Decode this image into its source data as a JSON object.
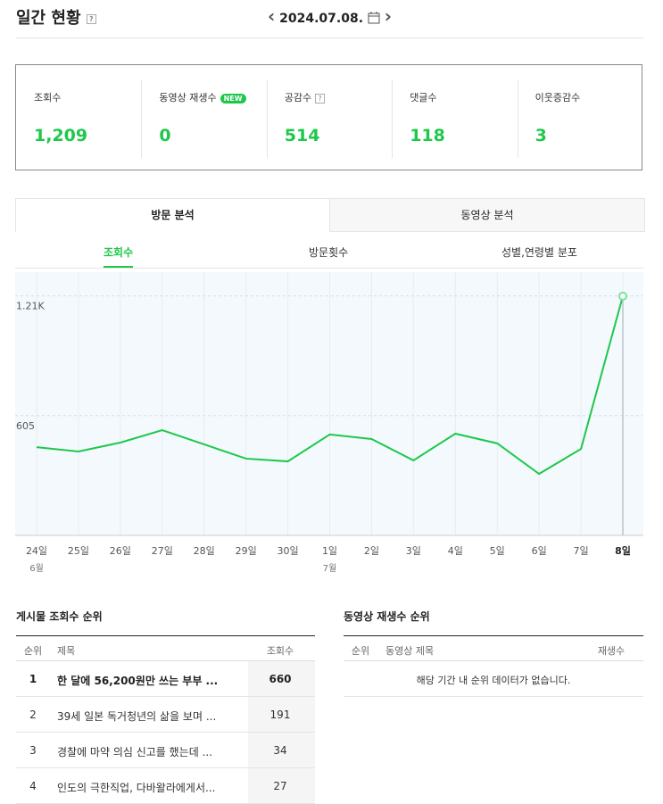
{
  "header": {
    "title": "일간 현황",
    "help_icon": "?",
    "date": "2024.07.08."
  },
  "stats": [
    {
      "label": "조회수",
      "value": "1,209"
    },
    {
      "label": "동영상 재생수",
      "badge": "NEW",
      "value": "0"
    },
    {
      "label": "공감수",
      "help_icon": "?",
      "value": "514"
    },
    {
      "label": "댓글수",
      "value": "118"
    },
    {
      "label": "이웃증감수",
      "value": "3"
    }
  ],
  "tabs": [
    "방문 분석",
    "동영상 분석"
  ],
  "subtabs": [
    "조회수",
    "방문횟수",
    "성별,연령별 분포"
  ],
  "chart_data": {
    "type": "line",
    "color": "#1ec84b",
    "categories": [
      "24일",
      "25일",
      "26일",
      "27일",
      "28일",
      "29일",
      "30일",
      "1일",
      "2일",
      "3일",
      "4일",
      "5일",
      "6일",
      "7일",
      "8일"
    ],
    "month_labels": [
      "6월",
      null,
      null,
      null,
      null,
      null,
      null,
      "7월",
      null,
      null,
      null,
      null,
      null,
      null,
      null
    ],
    "values": [
      446,
      424,
      469,
      532,
      460,
      388,
      374,
      510,
      487,
      379,
      514,
      465,
      311,
      437,
      1209
    ],
    "ylim": [
      0,
      1330
    ],
    "yticks": [
      605,
      {
        "value": 1210,
        "label": "1.21K"
      }
    ],
    "grid": true
  },
  "post_ranking": {
    "title": "게시물 조회수 순위",
    "columns": [
      "순위",
      "제목",
      "조회수"
    ],
    "rows": [
      [
        1,
        "한 달에 56,200원만 쓰는 부부 ...",
        660
      ],
      [
        2,
        "39세 일본 독거청년의 삶을 보며 ...",
        191
      ],
      [
        3,
        "경찰에 마약 의심 신고를 했는데 ...",
        34
      ],
      [
        4,
        "인도의 극한직업, 다바왈라에게서...",
        27
      ]
    ]
  },
  "video_ranking": {
    "title": "동영상 재생수 순위",
    "columns": [
      "순위",
      "동영상 제목",
      "재생수"
    ],
    "empty_message": "해당 기간 내 순위 데이터가 없습니다."
  }
}
